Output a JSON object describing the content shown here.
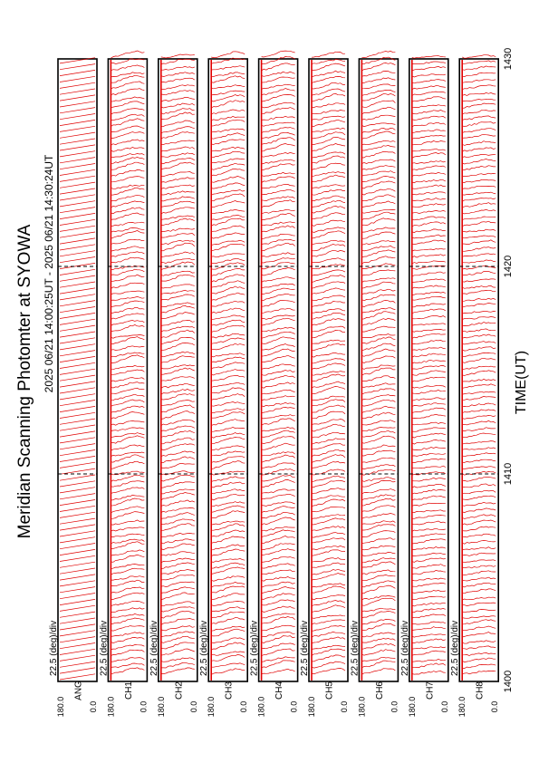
{
  "chart_data": {
    "type": "line",
    "title": "Meridian Scanning Photomter at SYOWA",
    "time_range": "2025 06/21 14:00:25UT - 2025 06/21 14:30:24UT",
    "xlabel": "TIME(UT)",
    "x_ticks": [
      "1400",
      "1410",
      "1420",
      "1430"
    ],
    "xlim": [
      1400,
      1430
    ],
    "y_tick_top": "180.0",
    "y_tick_bottom": "0.0",
    "scale_note": "22.5 (deg)/div",
    "orientation": "rotated-90-ccw",
    "panels": [
      {
        "label": "ANG",
        "kind": "angle"
      },
      {
        "label": "CH1",
        "kind": "scan"
      },
      {
        "label": "CH2",
        "kind": "scan"
      },
      {
        "label": "CH3",
        "kind": "scan"
      },
      {
        "label": "CH4",
        "kind": "scan"
      },
      {
        "label": "CH5",
        "kind": "scan"
      },
      {
        "label": "CH6",
        "kind": "scan"
      },
      {
        "label": "CH7",
        "kind": "scan"
      },
      {
        "label": "CH8",
        "kind": "scan"
      }
    ],
    "colors": {
      "trace": "#e00000",
      "frame": "#000000"
    }
  }
}
